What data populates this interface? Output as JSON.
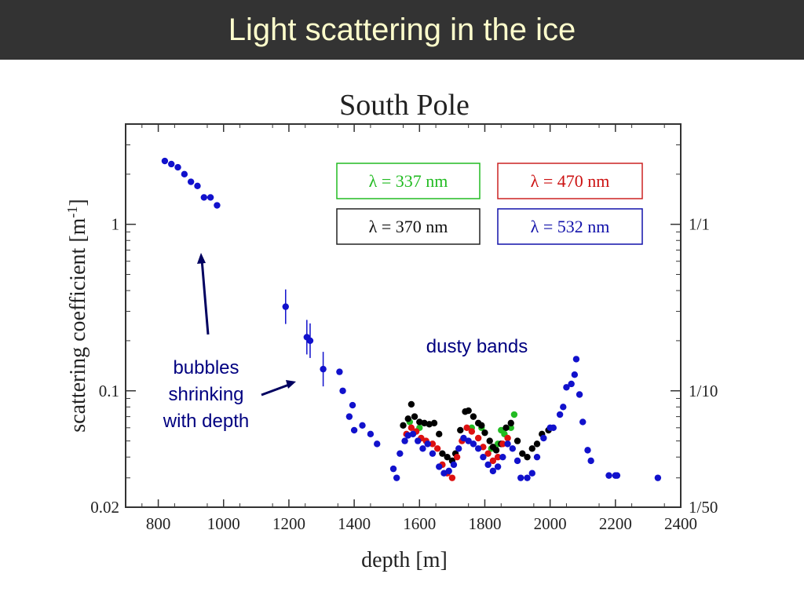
{
  "slide": {
    "title": "Light scattering in the ice"
  },
  "chart_data": {
    "type": "scatter",
    "title": "South Pole",
    "xlabel": "depth [m]",
    "ylabel": "scattering coefficient [m",
    "ylabel_sup": "-1",
    "ylabel_tail": "]",
    "xlim": [
      700,
      2400
    ],
    "ylim": [
      0.02,
      4
    ],
    "yscale": "log",
    "xticks": [
      800,
      1000,
      1200,
      1400,
      1600,
      1800,
      2000,
      2200,
      2400
    ],
    "yticks": [
      {
        "value": 1,
        "label": "1"
      },
      {
        "value": 0.1,
        "label": "0.1"
      },
      {
        "value": 0.02,
        "label": "0.02"
      }
    ],
    "right_ticks": [
      {
        "value": 1,
        "label": "1/1"
      },
      {
        "value": 0.1,
        "label": "1/10"
      },
      {
        "value": 0.02,
        "label": "1/50"
      }
    ],
    "grid": false,
    "legend_position": "top-right",
    "series": [
      {
        "name": "λ = 337 nm",
        "color": "#22bb22",
        "points": [
          [
            1570,
            0.065
          ],
          [
            1600,
            0.06
          ],
          [
            1760,
            0.06
          ],
          [
            1790,
            0.06
          ],
          [
            1820,
            0.045
          ],
          [
            1840,
            0.048
          ],
          [
            1850,
            0.058
          ],
          [
            1860,
            0.055
          ],
          [
            1880,
            0.06
          ],
          [
            1890,
            0.072
          ]
        ]
      },
      {
        "name": "λ = 370 nm",
        "color": "#000000",
        "points": [
          [
            1550,
            0.062
          ],
          [
            1565,
            0.068
          ],
          [
            1575,
            0.083
          ],
          [
            1585,
            0.07
          ],
          [
            1600,
            0.065
          ],
          [
            1615,
            0.064
          ],
          [
            1630,
            0.063
          ],
          [
            1645,
            0.064
          ],
          [
            1660,
            0.055
          ],
          [
            1670,
            0.042
          ],
          [
            1685,
            0.04
          ],
          [
            1700,
            0.038
          ],
          [
            1710,
            0.042
          ],
          [
            1725,
            0.058
          ],
          [
            1740,
            0.075
          ],
          [
            1750,
            0.076
          ],
          [
            1765,
            0.07
          ],
          [
            1780,
            0.064
          ],
          [
            1790,
            0.062
          ],
          [
            1800,
            0.056
          ],
          [
            1815,
            0.05
          ],
          [
            1825,
            0.046
          ],
          [
            1835,
            0.044
          ],
          [
            1850,
            0.048
          ],
          [
            1865,
            0.06
          ],
          [
            1880,
            0.064
          ],
          [
            1900,
            0.05
          ],
          [
            1915,
            0.042
          ],
          [
            1930,
            0.04
          ],
          [
            1945,
            0.045
          ],
          [
            1960,
            0.048
          ],
          [
            1975,
            0.055
          ],
          [
            1995,
            0.058
          ]
        ]
      },
      {
        "name": "λ = 470 nm",
        "color": "#dd1111",
        "points": [
          [
            1560,
            0.055
          ],
          [
            1575,
            0.06
          ],
          [
            1590,
            0.057
          ],
          [
            1605,
            0.052
          ],
          [
            1620,
            0.05
          ],
          [
            1640,
            0.048
          ],
          [
            1655,
            0.045
          ],
          [
            1670,
            0.036
          ],
          [
            1685,
            0.032
          ],
          [
            1700,
            0.03
          ],
          [
            1715,
            0.04
          ],
          [
            1730,
            0.05
          ],
          [
            1745,
            0.06
          ],
          [
            1760,
            0.057
          ],
          [
            1780,
            0.052
          ],
          [
            1795,
            0.046
          ],
          [
            1810,
            0.042
          ],
          [
            1825,
            0.038
          ],
          [
            1840,
            0.04
          ],
          [
            1855,
            0.048
          ],
          [
            1870,
            0.052
          ]
        ]
      },
      {
        "name": "λ = 532 nm",
        "color": "#1111cc",
        "points": [
          [
            820,
            2.4
          ],
          [
            840,
            2.3
          ],
          [
            860,
            2.2
          ],
          [
            880,
            2.0
          ],
          [
            900,
            1.8
          ],
          [
            920,
            1.7
          ],
          [
            940,
            1.45
          ],
          [
            960,
            1.45
          ],
          [
            980,
            1.3
          ],
          [
            1190,
            0.32
          ],
          [
            1255,
            0.21
          ],
          [
            1265,
            0.2
          ],
          [
            1305,
            0.135
          ],
          [
            1355,
            0.13
          ],
          [
            1365,
            0.1
          ],
          [
            1385,
            0.07
          ],
          [
            1395,
            0.082
          ],
          [
            1400,
            0.058
          ],
          [
            1425,
            0.062
          ],
          [
            1450,
            0.055
          ],
          [
            1470,
            0.048
          ],
          [
            1520,
            0.034
          ],
          [
            1530,
            0.03
          ],
          [
            1540,
            0.042
          ],
          [
            1555,
            0.05
          ],
          [
            1565,
            0.054
          ],
          [
            1580,
            0.055
          ],
          [
            1595,
            0.05
          ],
          [
            1610,
            0.045
          ],
          [
            1625,
            0.048
          ],
          [
            1640,
            0.042
          ],
          [
            1660,
            0.035
          ],
          [
            1675,
            0.032
          ],
          [
            1690,
            0.033
          ],
          [
            1705,
            0.036
          ],
          [
            1720,
            0.045
          ],
          [
            1735,
            0.052
          ],
          [
            1750,
            0.05
          ],
          [
            1765,
            0.048
          ],
          [
            1780,
            0.045
          ],
          [
            1795,
            0.04
          ],
          [
            1810,
            0.036
          ],
          [
            1825,
            0.033
          ],
          [
            1840,
            0.035
          ],
          [
            1855,
            0.04
          ],
          [
            1870,
            0.048
          ],
          [
            1885,
            0.045
          ],
          [
            1900,
            0.038
          ],
          [
            1910,
            0.03
          ],
          [
            1930,
            0.03
          ],
          [
            1945,
            0.032
          ],
          [
            1960,
            0.04
          ],
          [
            1980,
            0.052
          ],
          [
            2000,
            0.06
          ],
          [
            2010,
            0.06
          ],
          [
            2030,
            0.072
          ],
          [
            2040,
            0.08
          ],
          [
            2050,
            0.105
          ],
          [
            2065,
            0.11
          ],
          [
            2075,
            0.125
          ],
          [
            2080,
            0.155
          ],
          [
            2090,
            0.095
          ],
          [
            2100,
            0.065
          ],
          [
            2115,
            0.044
          ],
          [
            2125,
            0.038
          ],
          [
            2180,
            0.031
          ],
          [
            2200,
            0.031
          ],
          [
            2205,
            0.031
          ],
          [
            2330,
            0.03
          ]
        ]
      }
    ],
    "annotations": [
      "dusty bands",
      [
        "bubbles",
        "shrinking",
        "with depth"
      ]
    ]
  }
}
